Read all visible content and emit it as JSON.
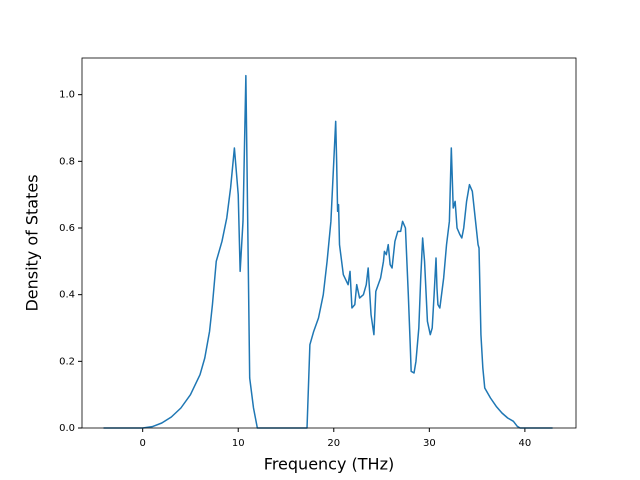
{
  "chart_data": {
    "type": "line",
    "x_label": "Frequency (THz)",
    "y_label": "Density of States",
    "xlim": [
      -6.35,
      45.35
    ],
    "ylim": [
      0,
      1.11
    ],
    "xticks": [
      0,
      10,
      20,
      30,
      40
    ],
    "yticks": [
      {
        "value": 0,
        "label": "0.0"
      },
      {
        "value": 0.2,
        "label": "0.2"
      },
      {
        "value": 0.4,
        "label": "0.4"
      },
      {
        "value": 0.6,
        "label": "0.6"
      },
      {
        "value": 0.8,
        "label": "0.8"
      },
      {
        "value": 1.0,
        "label": "1.0"
      }
    ],
    "grid": false,
    "series": [
      {
        "color": "#1f77b4",
        "x": [
          -4.1,
          0,
          1,
          2,
          3,
          4,
          5,
          6,
          6.5,
          7,
          7.3,
          7.7,
          8.3,
          8.8,
          9.2,
          9.6,
          10,
          10.2,
          10.5,
          10.8,
          11.2,
          11.6,
          12,
          17.2,
          17.5,
          17.9,
          18.4,
          18.9,
          19.3,
          19.7,
          20.0,
          20.2,
          20.3,
          20.4,
          20.5,
          20.6,
          21.0,
          21.5,
          21.7,
          21.9,
          22.2,
          22.4,
          22.7,
          23.1,
          23.4,
          23.6,
          23.9,
          24.2,
          24.4,
          24.9,
          25.2,
          25.3,
          25.5,
          25.7,
          25.9,
          26.1,
          26.4,
          26.7,
          27.0,
          27.2,
          27.5,
          27.8,
          28.0,
          28.1,
          28.4,
          28.6,
          28.9,
          29.1,
          29.3,
          29.5,
          29.8,
          30.1,
          30.3,
          30.5,
          30.7,
          30.8,
          30.9,
          31.1,
          31.5,
          31.8,
          32.1,
          32.3,
          32.5,
          32.7,
          32.9,
          33.2,
          33.4,
          33.6,
          33.9,
          34.2,
          34.5,
          34.8,
          35.1,
          35.2,
          35.4,
          35.6,
          35.8,
          36.4,
          37.0,
          37.6,
          38.2,
          38.8,
          39.2,
          39.5,
          42.9
        ],
        "values": [
          0,
          0,
          0.004,
          0.015,
          0.033,
          0.06,
          0.1,
          0.16,
          0.21,
          0.29,
          0.37,
          0.5,
          0.56,
          0.63,
          0.72,
          0.84,
          0.7,
          0.47,
          0.62,
          1.057,
          0.15,
          0.06,
          0,
          0,
          0.25,
          0.29,
          0.33,
          0.4,
          0.5,
          0.62,
          0.8,
          0.92,
          0.8,
          0.65,
          0.67,
          0.55,
          0.46,
          0.43,
          0.47,
          0.36,
          0.37,
          0.43,
          0.39,
          0.4,
          0.43,
          0.48,
          0.34,
          0.28,
          0.41,
          0.45,
          0.5,
          0.53,
          0.52,
          0.55,
          0.49,
          0.48,
          0.56,
          0.59,
          0.59,
          0.62,
          0.6,
          0.4,
          0.25,
          0.17,
          0.165,
          0.2,
          0.3,
          0.45,
          0.57,
          0.5,
          0.32,
          0.28,
          0.3,
          0.4,
          0.51,
          0.42,
          0.37,
          0.36,
          0.45,
          0.55,
          0.62,
          0.84,
          0.66,
          0.68,
          0.6,
          0.58,
          0.57,
          0.6,
          0.68,
          0.73,
          0.71,
          0.63,
          0.55,
          0.54,
          0.28,
          0.18,
          0.12,
          0.09,
          0.065,
          0.045,
          0.03,
          0.02,
          0.005,
          0,
          0
        ]
      }
    ]
  }
}
